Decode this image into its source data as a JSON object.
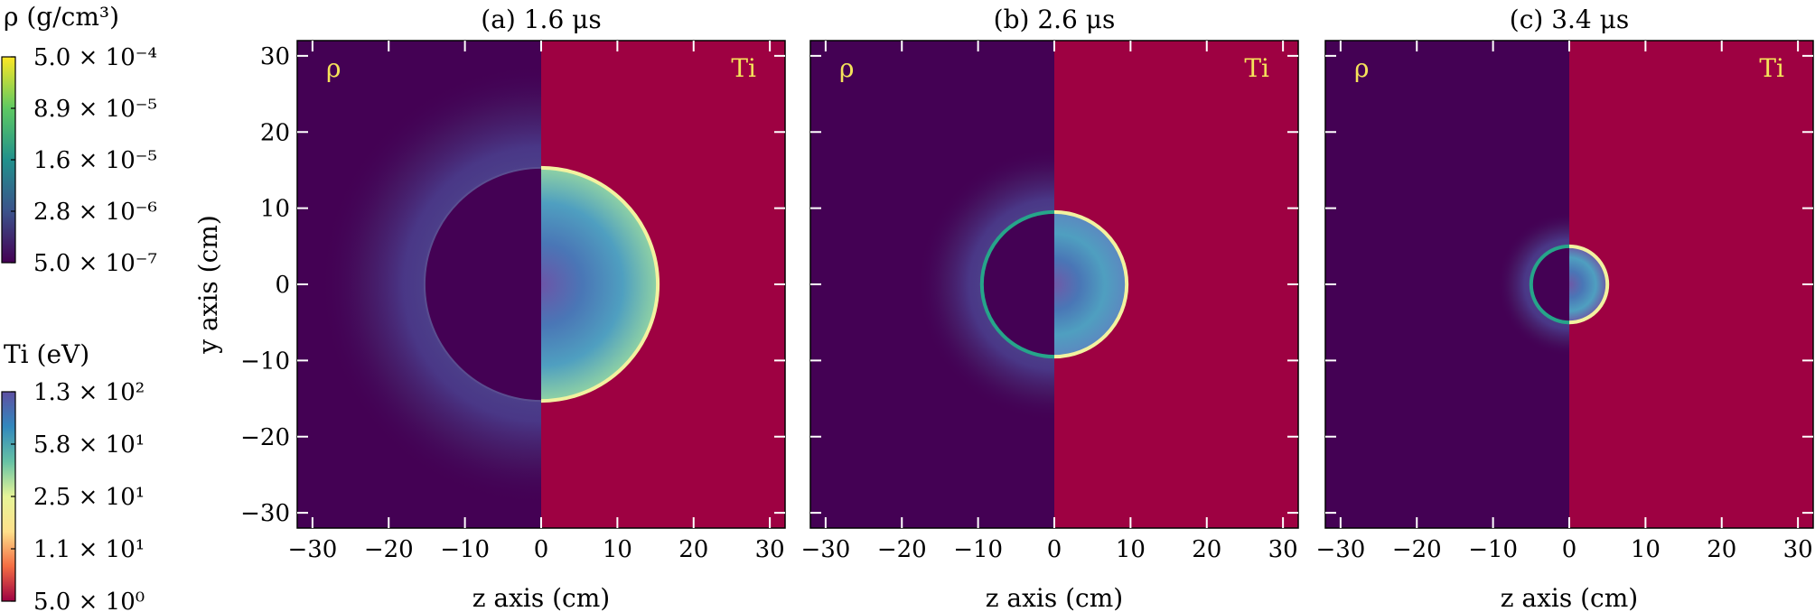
{
  "chart_data": {
    "type": "heatmap",
    "title": "",
    "panels": [
      {
        "title": "(a) 1.6 μs",
        "front_radius_cm": 15.3,
        "left_label": "ρ",
        "right_label": "Ti",
        "ti_core": "#6b55a8",
        "ti_edge": "#8fd2a4"
      },
      {
        "title": "(b) 2.6 μs",
        "front_radius_cm": 9.5,
        "left_label": "ρ",
        "right_label": "Ti",
        "ti_core": "#6f5aa8",
        "ti_edge": "#5c88c0"
      },
      {
        "title": "(c) 3.4 μs",
        "front_radius_cm": 5.0,
        "left_label": "ρ",
        "right_label": "Ti",
        "ti_core": "#6e58a6",
        "ti_edge": "#6e58a6"
      }
    ],
    "xlabel": "z axis (cm)",
    "ylabel": "y axis (cm)",
    "xlim": [
      -32,
      32
    ],
    "ylim": [
      -32,
      32
    ],
    "xticks": [
      -30,
      -20,
      -10,
      0,
      10,
      20,
      30
    ],
    "yticks": [
      -30,
      -20,
      -10,
      0,
      10,
      20,
      30
    ],
    "xtick_labels": [
      "−30",
      "−20",
      "−10",
      "0",
      "10",
      "20",
      "30"
    ],
    "ytick_labels": [
      "−30",
      "−20",
      "−10",
      "0",
      "10",
      "20",
      "30"
    ],
    "colorbars": [
      {
        "title": "ρ (g/cm³)",
        "scale": "log",
        "ticks": [
          0.0005,
          8.9e-05,
          1.6e-05,
          2.8e-06,
          5e-07
        ],
        "tick_labels": [
          "5.0 × 10⁻⁴",
          "8.9 × 10⁻⁵",
          "1.6 × 10⁻⁵",
          "2.8 × 10⁻⁶",
          "5.0 × 10⁻⁷"
        ],
        "colors": [
          "#440154",
          "#3b528b",
          "#21918c",
          "#5ec962",
          "#fde725"
        ]
      },
      {
        "title": "Ti (eV)",
        "scale": "log",
        "ticks": [
          130,
          58,
          25,
          11,
          5
        ],
        "tick_labels": [
          "1.3 × 10²",
          "5.8 × 10¹",
          "2.5 × 10¹",
          "1.1 × 10¹",
          "5.0  × 10⁰"
        ],
        "colors": [
          "#9e0142",
          "#f46d43",
          "#fee08b",
          "#e6f598",
          "#66c2a5",
          "#3288bd",
          "#5e4fa2"
        ]
      }
    ],
    "background_colors": {
      "rho": "#440154",
      "ti": "#9e0142"
    },
    "grid": false
  }
}
